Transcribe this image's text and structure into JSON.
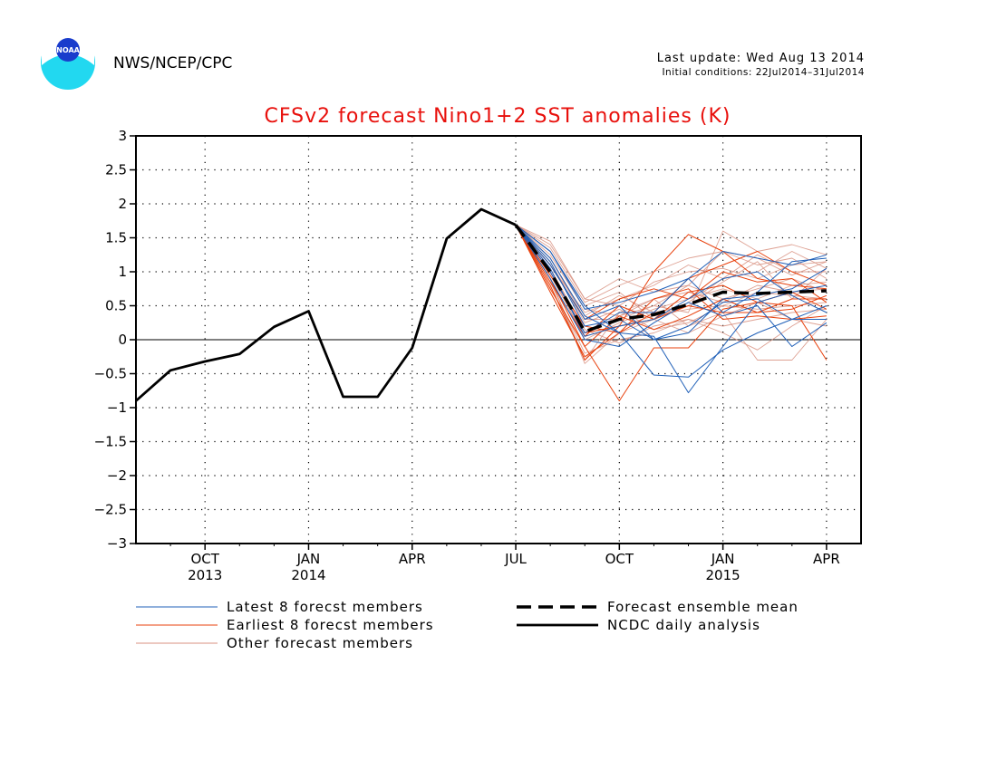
{
  "header": {
    "agency": "NWS/NCEP/CPC",
    "last_update": "Last update: Wed Aug 13 2014",
    "initial_conditions": "Initial conditions: 22Jul2014–31Jul2014",
    "logo_text": "NOAA"
  },
  "chart_data": {
    "type": "line",
    "title": "CFSv2 forecast Nino1+2 SST anomalies (K)",
    "xlabel": "",
    "ylabel": "",
    "ylim": [
      -3,
      3
    ],
    "y_ticks": [
      -3,
      -2.5,
      -2,
      -1.5,
      -1,
      -0.5,
      0,
      0.5,
      1,
      1.5,
      2,
      2.5,
      3
    ],
    "y_tick_labels": [
      "−3",
      "−2.5",
      "−2",
      "−1.5",
      "−1",
      "−0.5",
      "0",
      "0.5",
      "1",
      "1.5",
      "2",
      "2.5",
      "3"
    ],
    "x_range": [
      "2013-08",
      "2015-05"
    ],
    "x_ticks": [
      {
        "month": "2013-10",
        "label": "OCT",
        "year_label": "2013"
      },
      {
        "month": "2014-01",
        "label": "JAN",
        "year_label": "2014"
      },
      {
        "month": "2014-04",
        "label": "APR",
        "year_label": ""
      },
      {
        "month": "2014-07",
        "label": "JUL",
        "year_label": ""
      },
      {
        "month": "2014-10",
        "label": "OCT",
        "year_label": ""
      },
      {
        "month": "2015-01",
        "label": "JAN",
        "year_label": "2015"
      },
      {
        "month": "2015-04",
        "label": "APR",
        "year_label": ""
      }
    ],
    "grid": "dotted",
    "zero_line": true,
    "legend_placement": "below",
    "colors": {
      "title": "#e8100c",
      "latest": "#2060b8",
      "earliest": "#e8400c",
      "other": "#d89080",
      "analysis": "#000000",
      "mean": "#000000"
    },
    "legend": [
      {
        "key": "latest",
        "label": "Latest 8 forecst members"
      },
      {
        "key": "earliest",
        "label": "Earliest 8 forecst members"
      },
      {
        "key": "other",
        "label": "Other forecast members"
      },
      {
        "key": "mean",
        "label": "Forecast ensemble mean"
      },
      {
        "key": "analysis",
        "label": "NCDC daily analysis"
      }
    ],
    "analysis": {
      "x": [
        "2013-08",
        "2013-09",
        "2013-10",
        "2013-11",
        "2013-12",
        "2014-01",
        "2014-02",
        "2014-03",
        "2014-04",
        "2014-05",
        "2014-06",
        "2014-07"
      ],
      "y": [
        -0.9,
        -0.45,
        -0.32,
        -0.21,
        0.19,
        0.42,
        -0.84,
        -0.84,
        -0.12,
        1.49,
        1.92,
        1.69
      ]
    },
    "ensemble_mean": {
      "x": [
        "2014-07",
        "2014-08",
        "2014-09",
        "2014-10",
        "2014-11",
        "2014-12",
        "2015-01",
        "2015-02",
        "2015-03",
        "2015-04"
      ],
      "y": [
        1.69,
        1.0,
        0.12,
        0.3,
        0.37,
        0.52,
        0.7,
        0.68,
        0.7,
        0.72
      ]
    },
    "member_months": [
      "2014-07",
      "2014-08",
      "2014-09",
      "2014-10",
      "2014-11",
      "2014-12",
      "2015-01",
      "2015-02",
      "2015-03",
      "2015-04"
    ],
    "latest_members": [
      [
        1.69,
        1.2,
        0.35,
        0.1,
        -0.52,
        -0.55,
        -0.15,
        0.1,
        0.3,
        0.3
      ],
      [
        1.69,
        1.3,
        0.5,
        0.1,
        0.05,
        -0.78,
        -0.1,
        0.55,
        0.7,
        0.8
      ],
      [
        1.69,
        1.0,
        0.1,
        0.4,
        0.4,
        0.9,
        1.3,
        1.2,
        1.1,
        1.25
      ],
      [
        1.69,
        1.1,
        0.3,
        0.5,
        0.0,
        0.1,
        0.6,
        0.65,
        0.75,
        1.05
      ],
      [
        1.69,
        0.9,
        0.0,
        -0.1,
        0.25,
        0.55,
        0.35,
        0.5,
        -0.1,
        0.25
      ],
      [
        1.69,
        1.3,
        0.45,
        0.55,
        0.7,
        0.9,
        0.4,
        0.7,
        1.15,
        1.2
      ],
      [
        1.69,
        1.05,
        0.05,
        0.2,
        0.3,
        0.6,
        0.9,
        1.0,
        0.65,
        0.4
      ],
      [
        1.69,
        1.15,
        0.2,
        0.3,
        0.0,
        0.2,
        0.55,
        0.6,
        0.3,
        0.5
      ]
    ],
    "earliest_members": [
      [
        1.69,
        0.9,
        -0.1,
        -0.9,
        -0.12,
        -0.12,
        0.45,
        0.55,
        0.5,
        -0.3
      ],
      [
        1.69,
        1.0,
        0.1,
        0.2,
        1.0,
        1.55,
        1.3,
        0.9,
        0.8,
        0.75
      ],
      [
        1.69,
        0.8,
        -0.3,
        0.2,
        0.3,
        0.5,
        0.4,
        0.4,
        0.6,
        0.6
      ],
      [
        1.69,
        0.7,
        -0.25,
        0.1,
        0.4,
        0.9,
        1.1,
        1.3,
        1.0,
        0.8
      ],
      [
        1.69,
        0.85,
        0.05,
        0.5,
        0.3,
        0.7,
        0.8,
        0.55,
        0.7,
        0.45
      ],
      [
        1.69,
        0.95,
        0.2,
        0.1,
        0.6,
        0.75,
        0.3,
        0.35,
        0.3,
        0.35
      ],
      [
        1.69,
        1.1,
        0.3,
        0.6,
        0.75,
        0.6,
        1.0,
        0.85,
        0.9,
        0.55
      ],
      [
        1.69,
        0.75,
        -0.1,
        0.35,
        0.15,
        0.35,
        0.6,
        0.4,
        0.45,
        0.65
      ]
    ],
    "other_members": [
      [
        1.69,
        1.45,
        0.6,
        0.9,
        0.7,
        0.8,
        1.3,
        1.2,
        0.95,
        1.15
      ],
      [
        1.69,
        1.2,
        0.3,
        0.3,
        0.5,
        0.4,
        1.6,
        1.3,
        1.4,
        1.25
      ],
      [
        1.69,
        0.9,
        -0.3,
        0.4,
        0.6,
        0.2,
        0.4,
        -0.3,
        -0.3,
        0.3
      ],
      [
        1.69,
        1.3,
        0.5,
        0.7,
        0.3,
        0.55,
        0.9,
        1.0,
        1.3,
        1.05
      ],
      [
        1.69,
        1.05,
        0.15,
        -0.05,
        0.2,
        0.3,
        0.1,
        -0.15,
        0.2,
        0.5
      ],
      [
        1.69,
        1.1,
        0.4,
        0.6,
        0.8,
        1.1,
        0.9,
        1.25,
        1.0,
        1.0
      ],
      [
        1.69,
        0.95,
        0.05,
        0.2,
        0.35,
        0.45,
        0.5,
        0.45,
        0.5,
        0.55
      ],
      [
        1.69,
        1.25,
        0.45,
        0.35,
        0.6,
        0.7,
        0.55,
        0.8,
        0.7,
        0.75
      ],
      [
        1.69,
        0.85,
        -0.2,
        0.0,
        0.1,
        0.3,
        0.2,
        0.3,
        0.4,
        0.45
      ],
      [
        1.69,
        1.35,
        0.55,
        0.8,
        1.0,
        1.2,
        1.3,
        1.1,
        1.2,
        0.9
      ],
      [
        1.69,
        1.0,
        0.0,
        0.25,
        0.45,
        0.6,
        0.75,
        0.6,
        0.8,
        0.85
      ],
      [
        1.69,
        1.15,
        0.25,
        0.45,
        0.15,
        0.25,
        0.5,
        0.7,
        0.65,
        0.6
      ],
      [
        1.69,
        0.9,
        -0.35,
        0.1,
        0.3,
        0.1,
        0.35,
        0.55,
        0.3,
        0.2
      ],
      [
        1.69,
        1.4,
        0.6,
        0.5,
        0.85,
        1.0,
        1.05,
        0.9,
        1.1,
        1.15
      ],
      [
        1.69,
        1.05,
        0.1,
        0.35,
        0.5,
        0.8,
        0.6,
        0.75,
        0.9,
        0.7
      ],
      [
        1.69,
        1.2,
        0.35,
        0.65,
        0.4,
        0.5,
        0.85,
        1.15,
        0.6,
        1.05
      ]
    ]
  }
}
